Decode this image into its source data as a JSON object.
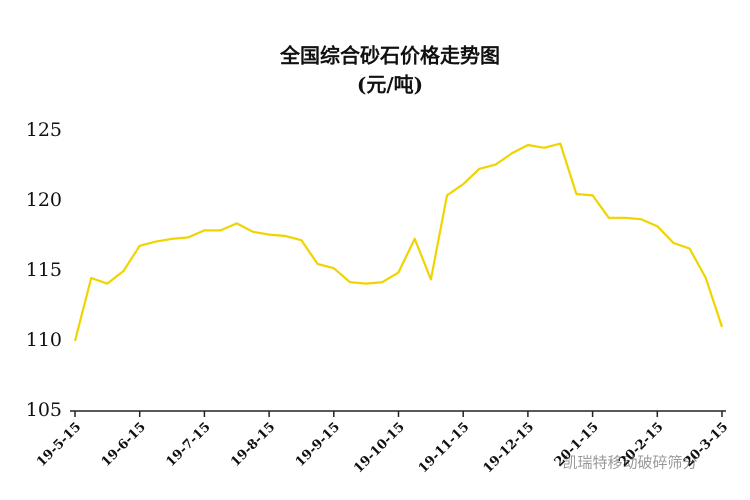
{
  "chart_data": {
    "type": "line",
    "title": "全国综合砂石价格走势图",
    "subtitle": "(元/吨)",
    "categories": [
      "19-5-15",
      null,
      null,
      null,
      "19-6-15",
      null,
      null,
      null,
      "19-7-15",
      null,
      null,
      null,
      "19-8-15",
      null,
      null,
      null,
      "19-9-15",
      null,
      null,
      null,
      "19-10-15",
      null,
      null,
      null,
      "19-11-15",
      null,
      null,
      null,
      "19-12-15",
      null,
      null,
      null,
      "20-1-15",
      null,
      null,
      null,
      "20-2-15",
      null,
      null,
      null,
      "20-3-15"
    ],
    "series": [
      {
        "name": "全国综合砂石价格",
        "color": "#f0d400",
        "values": [
          110.0,
          114.5,
          114.1,
          115.0,
          116.8,
          117.1,
          117.3,
          117.4,
          117.9,
          117.9,
          118.4,
          117.8,
          117.6,
          117.5,
          117.2,
          115.5,
          115.2,
          114.2,
          114.1,
          114.2,
          114.9,
          117.3,
          114.4,
          120.4,
          121.2,
          122.3,
          122.6,
          123.4,
          124.0,
          123.8,
          124.1,
          120.5,
          120.4,
          118.8,
          118.8,
          118.7,
          118.2,
          117.0,
          116.6,
          114.5,
          111.0
        ]
      }
    ],
    "ylim": [
      105,
      125
    ],
    "yticks": [
      105,
      110,
      115,
      120,
      125
    ],
    "grid": false,
    "watermark": "凯瑞特移动破碎筛分"
  }
}
